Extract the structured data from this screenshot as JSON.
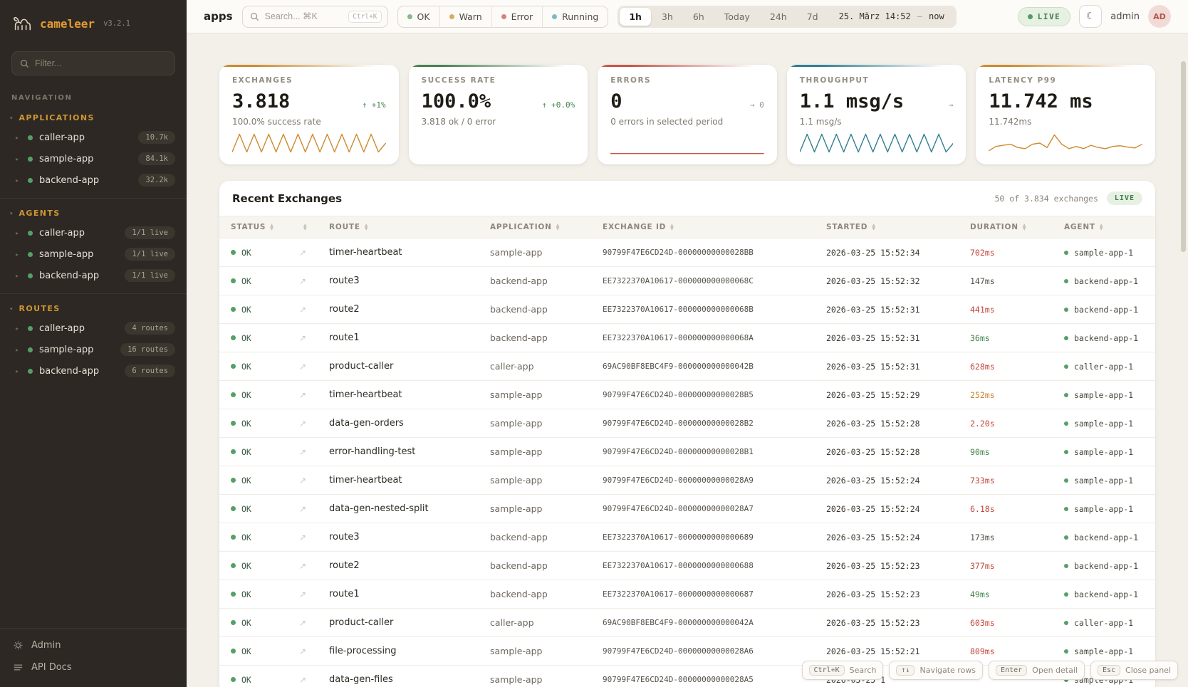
{
  "sidebar": {
    "brand": "cameleer",
    "version": "v3.2.1",
    "filter_placeholder": "Filter...",
    "nav_label": "NAVIGATION",
    "sections": [
      {
        "title": "APPLICATIONS",
        "items": [
          {
            "name": "caller-app",
            "badge": "10.7k"
          },
          {
            "name": "sample-app",
            "badge": "84.1k"
          },
          {
            "name": "backend-app",
            "badge": "32.2k"
          }
        ]
      },
      {
        "title": "AGENTS",
        "items": [
          {
            "name": "caller-app",
            "badge": "1/1 live"
          },
          {
            "name": "sample-app",
            "badge": "1/1 live"
          },
          {
            "name": "backend-app",
            "badge": "1/1 live"
          }
        ]
      },
      {
        "title": "ROUTES",
        "items": [
          {
            "name": "caller-app",
            "badge": "4 routes"
          },
          {
            "name": "sample-app",
            "badge": "16 routes"
          },
          {
            "name": "backend-app",
            "badge": "6 routes"
          }
        ]
      }
    ],
    "footer": [
      {
        "label": "Admin"
      },
      {
        "label": "API Docs"
      }
    ]
  },
  "topbar": {
    "context": "apps",
    "search_placeholder": "Search... ⌘K",
    "search_kbd": "Ctrl+K",
    "status_filters": [
      {
        "label": "OK",
        "color": "#84b98c"
      },
      {
        "label": "Warn",
        "color": "#d9aa62"
      },
      {
        "label": "Error",
        "color": "#d98078"
      },
      {
        "label": "Running",
        "color": "#7fb9c4"
      }
    ],
    "ranges": [
      "1h",
      "3h",
      "6h",
      "Today",
      "24h",
      "7d"
    ],
    "active_range": "1h",
    "range_date": "25. März 14:52",
    "range_sep": "—",
    "range_end": "now",
    "live_label": "LIVE",
    "user": "admin",
    "avatar": "AD"
  },
  "kpis": [
    {
      "label": "EXCHANGES",
      "value": "3.818",
      "delta": "↑ +1%",
      "delta_tone": "green",
      "sub": "100.0% success rate",
      "accent": "#cd8a2e",
      "spark_color": "#cd8a2e",
      "spark_type": "zigzag",
      "spark": [
        1,
        9,
        1,
        9,
        1,
        9,
        1,
        9,
        1,
        9,
        1,
        9,
        1,
        9,
        1,
        9,
        1,
        9,
        1,
        9,
        1,
        5
      ]
    },
    {
      "label": "SUCCESS RATE",
      "value": "100.0%",
      "delta": "↑ +0.0%",
      "delta_tone": "green",
      "sub": "3.818 ok / 0 error",
      "accent": "#47804f",
      "spark_color": "#47804f",
      "spark_type": "none",
      "spark": []
    },
    {
      "label": "ERRORS",
      "value": "0",
      "delta": "→ 0",
      "delta_tone": "gray",
      "sub": "0 errors in selected period",
      "accent": "#c4574a",
      "spark_color": "#c4574a",
      "spark_type": "flat",
      "spark": [
        0.3,
        0.3
      ]
    },
    {
      "label": "THROUGHPUT",
      "value": "1.1 msg/s",
      "delta": "→",
      "delta_tone": "gray",
      "sub": "1.1 msg/s",
      "accent": "#2f7f90",
      "spark_color": "#2f7f90",
      "spark_type": "zigzag",
      "spark": [
        1,
        9,
        1,
        9,
        1,
        9,
        1,
        9,
        1,
        9,
        1,
        9,
        1,
        9,
        1,
        9,
        1,
        9,
        1,
        9,
        1,
        5
      ]
    },
    {
      "label": "LATENCY P99",
      "value": "11.742 ms",
      "delta": "",
      "delta_tone": "gray",
      "sub": "11.742ms",
      "accent": "#cd8a2e",
      "spark_color": "#cd8a2e",
      "spark_type": "line",
      "spark": [
        1.5,
        3.5,
        4,
        4.5,
        3,
        2.5,
        4.5,
        5,
        3,
        8.7,
        4.5,
        2.5,
        3.5,
        2.5,
        4,
        3,
        2.5,
        3.5,
        3.8,
        3.2,
        2.8,
        4.5
      ]
    }
  ],
  "table": {
    "title": "Recent Exchanges",
    "meta": "50 of 3.834 exchanges",
    "live_label": "LIVE",
    "columns": [
      {
        "label": "STATUS"
      },
      {
        "label": ""
      },
      {
        "label": "ROUTE"
      },
      {
        "label": "APPLICATION"
      },
      {
        "label": "EXCHANGE ID"
      },
      {
        "label": "STARTED"
      },
      {
        "label": "DURATION"
      },
      {
        "label": "AGENT"
      }
    ],
    "rows": [
      {
        "status": "OK",
        "route": "timer-heartbeat",
        "app": "sample-app",
        "id": "90799F47E6CD24D-00000000000028BB",
        "started": "2026-03-25 15:52:34",
        "duration": "702ms",
        "duration_tone": "red",
        "agent": "sample-app-1"
      },
      {
        "status": "OK",
        "route": "route3",
        "app": "backend-app",
        "id": "EE7322370A10617-000000000000068C",
        "started": "2026-03-25 15:52:32",
        "duration": "147ms",
        "duration_tone": "neutral",
        "agent": "backend-app-1"
      },
      {
        "status": "OK",
        "route": "route2",
        "app": "backend-app",
        "id": "EE7322370A10617-000000000000068B",
        "started": "2026-03-25 15:52:31",
        "duration": "441ms",
        "duration_tone": "red",
        "agent": "backend-app-1"
      },
      {
        "status": "OK",
        "route": "route1",
        "app": "backend-app",
        "id": "EE7322370A10617-000000000000068A",
        "started": "2026-03-25 15:52:31",
        "duration": "36ms",
        "duration_tone": "green",
        "agent": "backend-app-1"
      },
      {
        "status": "OK",
        "route": "product-caller",
        "app": "caller-app",
        "id": "69AC90BF8EBC4F9-000000000000042B",
        "started": "2026-03-25 15:52:31",
        "duration": "628ms",
        "duration_tone": "red",
        "agent": "caller-app-1"
      },
      {
        "status": "OK",
        "route": "timer-heartbeat",
        "app": "sample-app",
        "id": "90799F47E6CD24D-00000000000028B5",
        "started": "2026-03-25 15:52:29",
        "duration": "252ms",
        "duration_tone": "orange",
        "agent": "sample-app-1"
      },
      {
        "status": "OK",
        "route": "data-gen-orders",
        "app": "sample-app",
        "id": "90799F47E6CD24D-00000000000028B2",
        "started": "2026-03-25 15:52:28",
        "duration": "2.20s",
        "duration_tone": "red",
        "agent": "sample-app-1"
      },
      {
        "status": "OK",
        "route": "error-handling-test",
        "app": "sample-app",
        "id": "90799F47E6CD24D-00000000000028B1",
        "started": "2026-03-25 15:52:28",
        "duration": "90ms",
        "duration_tone": "green",
        "agent": "sample-app-1"
      },
      {
        "status": "OK",
        "route": "timer-heartbeat",
        "app": "sample-app",
        "id": "90799F47E6CD24D-00000000000028A9",
        "started": "2026-03-25 15:52:24",
        "duration": "733ms",
        "duration_tone": "red",
        "agent": "sample-app-1"
      },
      {
        "status": "OK",
        "route": "data-gen-nested-split",
        "app": "sample-app",
        "id": "90799F47E6CD24D-00000000000028A7",
        "started": "2026-03-25 15:52:24",
        "duration": "6.18s",
        "duration_tone": "red",
        "agent": "sample-app-1"
      },
      {
        "status": "OK",
        "route": "route3",
        "app": "backend-app",
        "id": "EE7322370A10617-0000000000000689",
        "started": "2026-03-25 15:52:24",
        "duration": "173ms",
        "duration_tone": "neutral",
        "agent": "backend-app-1"
      },
      {
        "status": "OK",
        "route": "route2",
        "app": "backend-app",
        "id": "EE7322370A10617-0000000000000688",
        "started": "2026-03-25 15:52:23",
        "duration": "377ms",
        "duration_tone": "red",
        "agent": "backend-app-1"
      },
      {
        "status": "OK",
        "route": "route1",
        "app": "backend-app",
        "id": "EE7322370A10617-0000000000000687",
        "started": "2026-03-25 15:52:23",
        "duration": "49ms",
        "duration_tone": "green",
        "agent": "backend-app-1"
      },
      {
        "status": "OK",
        "route": "product-caller",
        "app": "caller-app",
        "id": "69AC90BF8EBC4F9-000000000000042A",
        "started": "2026-03-25 15:52:23",
        "duration": "603ms",
        "duration_tone": "red",
        "agent": "caller-app-1"
      },
      {
        "status": "OK",
        "route": "file-processing",
        "app": "sample-app",
        "id": "90799F47E6CD24D-00000000000028A6",
        "started": "2026-03-25 15:52:21",
        "duration": "809ms",
        "duration_tone": "red",
        "agent": "sample-app-1"
      },
      {
        "status": "OK",
        "route": "data-gen-files",
        "app": "sample-app",
        "id": "90799F47E6CD24D-00000000000028A5",
        "started": "2026-03-25 1",
        "duration": "",
        "duration_tone": "neutral",
        "agent": "sample-app-1"
      }
    ]
  },
  "shortcuts": [
    {
      "keys": "Ctrl+K",
      "label": "Search"
    },
    {
      "keys": "↑↓",
      "label": "Navigate rows"
    },
    {
      "keys": "Enter",
      "label": "Open detail"
    },
    {
      "keys": "Esc",
      "label": "Close panel"
    }
  ]
}
